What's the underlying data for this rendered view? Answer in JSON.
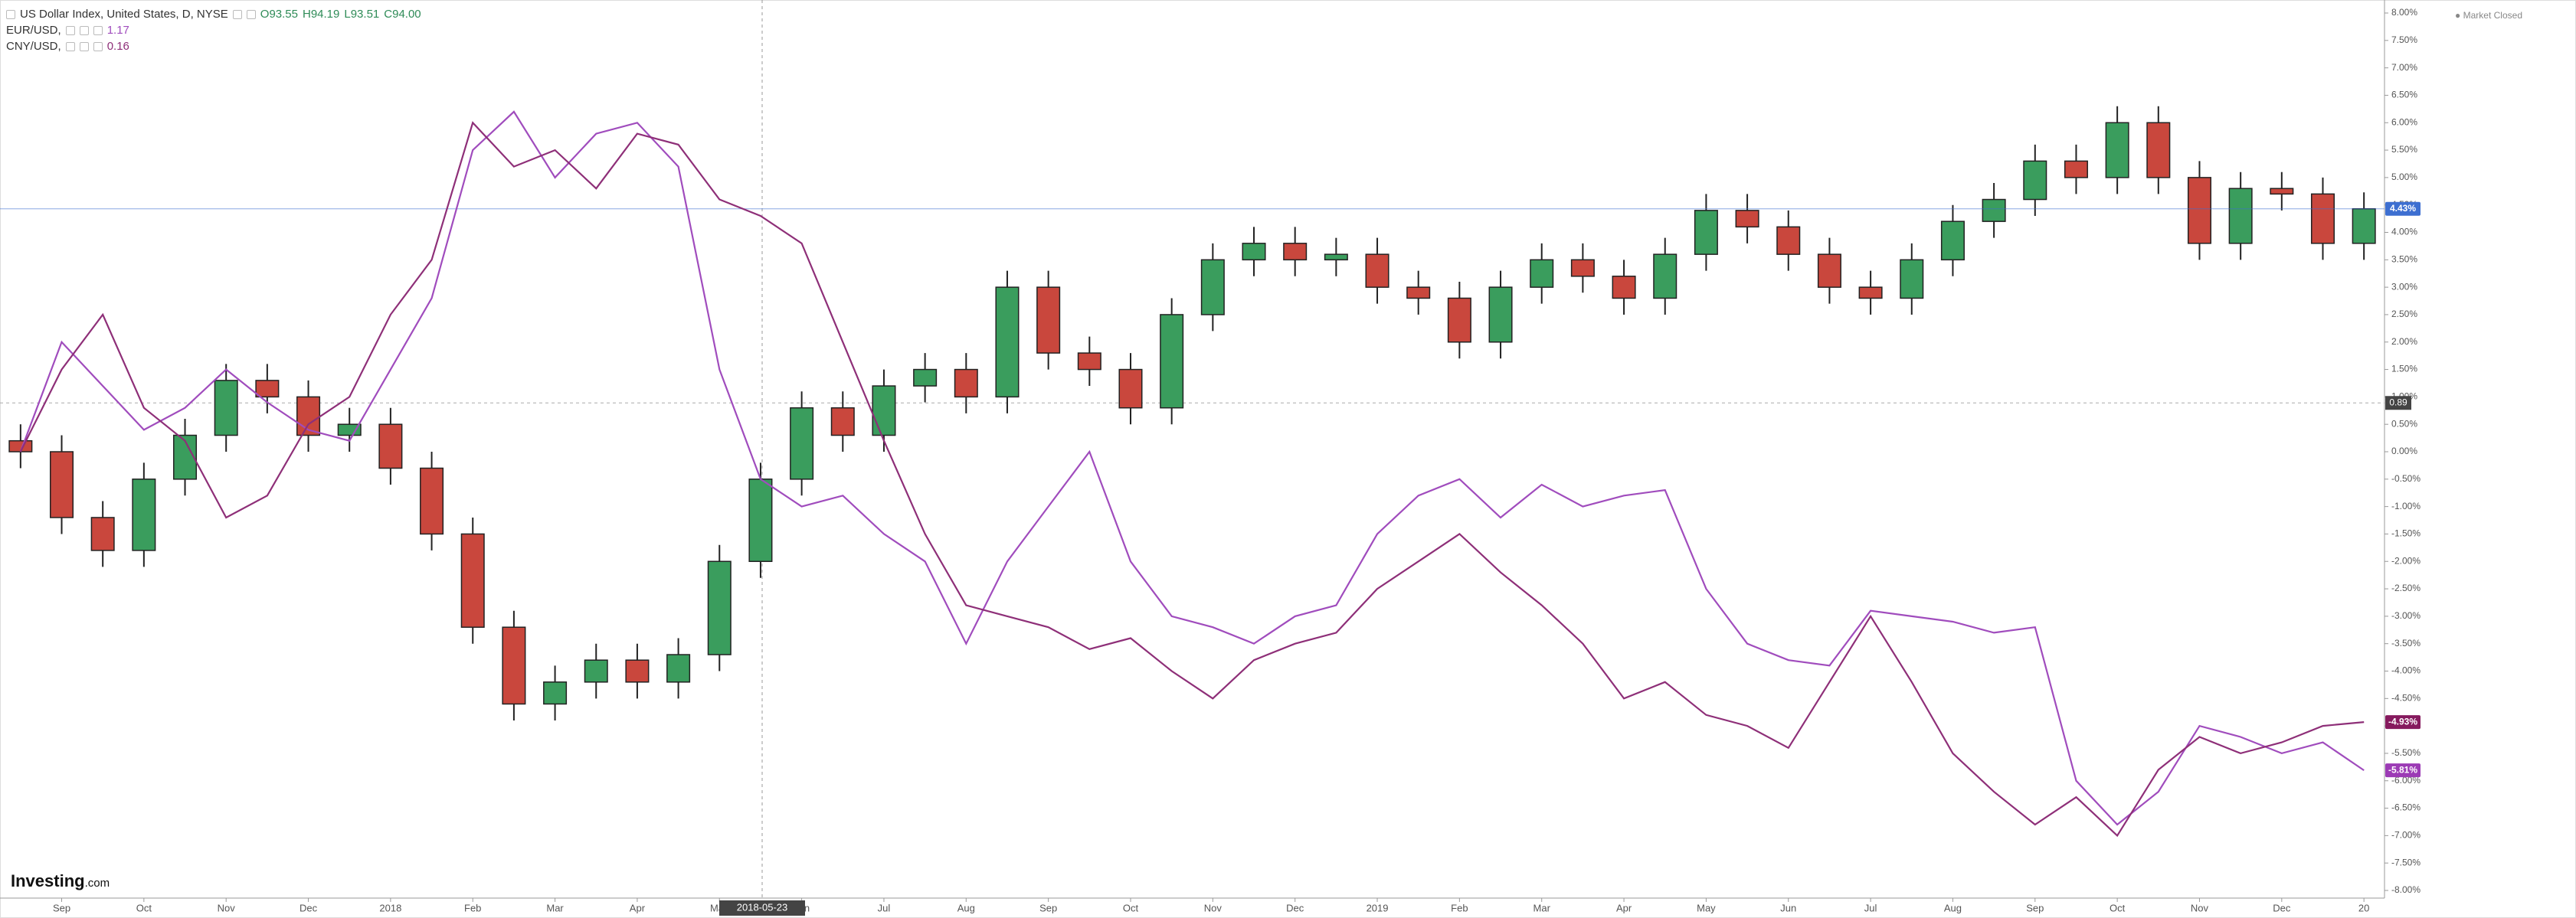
{
  "chart_data": {
    "type": "candlestick",
    "status": "Market Closed",
    "brand": [
      "Investing",
      ".com"
    ],
    "crosshair": {
      "date": "2018-05-23",
      "value": 0.89
    },
    "categories": [
      null,
      "Sep",
      null,
      "Oct",
      null,
      "Nov",
      null,
      "Dec",
      null,
      "2018",
      null,
      "Feb",
      null,
      "Mar",
      null,
      "Apr",
      null,
      "May",
      null,
      "Jun",
      null,
      "Jul",
      null,
      "Aug",
      null,
      "Sep",
      null,
      "Oct",
      null,
      "Nov",
      null,
      "Dec",
      null,
      "2019",
      null,
      "Feb",
      null,
      "Mar",
      null,
      "Apr",
      null,
      "May",
      null,
      "Jun",
      null,
      "Jul",
      null,
      "Aug",
      null,
      "Sep",
      null,
      "Oct",
      null,
      "Nov",
      null,
      "Dec",
      null,
      "20"
    ],
    "ylim": [
      -8,
      8
    ],
    "yticks": [
      {
        "value": 8,
        "label": "8.00%"
      },
      {
        "value": 7.5,
        "label": "7.50%"
      },
      {
        "value": 7,
        "label": "7.00%"
      },
      {
        "value": 6.5,
        "label": "6.50%"
      },
      {
        "value": 6,
        "label": "6.00%"
      },
      {
        "value": 5.5,
        "label": "5.50%"
      },
      {
        "value": 5,
        "label": "5.00%"
      },
      {
        "value": 4.5,
        "label": "4.50%"
      },
      {
        "value": 4,
        "label": "4.00%"
      },
      {
        "value": 3.5,
        "label": "3.50%"
      },
      {
        "value": 3,
        "label": "3.00%"
      },
      {
        "value": 2.5,
        "label": "2.50%"
      },
      {
        "value": 2,
        "label": "2.00%"
      },
      {
        "value": 1.5,
        "label": "1.50%"
      },
      {
        "value": 1,
        "label": "1.00%"
      },
      {
        "value": 0.5,
        "label": "0.50%"
      },
      {
        "value": 0,
        "label": "0.00%"
      },
      {
        "value": -0.5,
        "label": "-0.50%"
      },
      {
        "value": -1,
        "label": "-1.00%"
      },
      {
        "value": -1.5,
        "label": "-1.50%"
      },
      {
        "value": -2,
        "label": "-2.00%"
      },
      {
        "value": -2.5,
        "label": "-2.50%"
      },
      {
        "value": -3,
        "label": "-3.00%"
      },
      {
        "value": -3.5,
        "label": "-3.50%"
      },
      {
        "value": -4,
        "label": "-4.00%"
      },
      {
        "value": -4.5,
        "label": "-4.50%"
      },
      {
        "value": -5,
        "label": "-5.00%"
      },
      {
        "value": -5.5,
        "label": "-5.50%"
      },
      {
        "value": -6,
        "label": "-6.00%"
      },
      {
        "value": -6.5,
        "label": "-6.50%"
      },
      {
        "value": -7,
        "label": "-7.00%"
      },
      {
        "value": -7.5,
        "label": "-7.50%"
      },
      {
        "value": -8,
        "label": "-8.00%"
      }
    ],
    "grid": false,
    "series": [
      {
        "type": "candlestick",
        "name": "US Dollar Index, United States, D, NYSE",
        "readout": [
          "O93.55",
          "H94.19",
          "L93.51",
          "C94.00"
        ],
        "up_color": "#3a9d5d",
        "down_color": "#c9473d",
        "tag_color": "#3d6fd1",
        "last_label": "4.43%",
        "open": [
          0.2,
          0.0,
          -1.2,
          -1.8,
          -0.5,
          0.3,
          1.3,
          1.0,
          0.3,
          0.5,
          -0.3,
          -1.5,
          -3.2,
          -4.6,
          -4.2,
          -3.8,
          -4.2,
          -3.7,
          -2.0,
          -0.5,
          0.8,
          0.3,
          1.2,
          1.5,
          1.0,
          3.0,
          1.8,
          1.5,
          0.8,
          2.5,
          3.5,
          3.8,
          3.5,
          3.6,
          3.0,
          2.8,
          2.0,
          3.0,
          3.5,
          3.2,
          2.8,
          3.6,
          4.4,
          4.1,
          3.6,
          3.0,
          2.8,
          3.5,
          4.2,
          4.6,
          5.3,
          5.0,
          6.0,
          5.0,
          3.8,
          4.8,
          4.7,
          3.8
        ],
        "high": [
          0.5,
          0.3,
          -0.9,
          -0.2,
          0.6,
          1.6,
          1.6,
          1.3,
          0.8,
          0.8,
          0.0,
          -1.2,
          -2.9,
          -3.9,
          -3.5,
          -3.5,
          -3.4,
          -1.7,
          -0.2,
          1.1,
          1.1,
          1.5,
          1.8,
          1.8,
          3.3,
          3.3,
          2.1,
          1.8,
          2.8,
          3.8,
          4.1,
          4.1,
          3.9,
          3.9,
          3.3,
          3.1,
          3.3,
          3.8,
          3.8,
          3.5,
          3.9,
          4.7,
          4.7,
          4.4,
          3.9,
          3.3,
          3.8,
          4.5,
          4.9,
          5.6,
          5.6,
          6.3,
          6.3,
          5.3,
          5.1,
          5.1,
          5.0,
          4.73
        ],
        "low": [
          -0.3,
          -1.5,
          -2.1,
          -2.1,
          -0.8,
          0.0,
          0.7,
          0.0,
          0.0,
          -0.6,
          -1.8,
          -3.5,
          -4.9,
          -4.9,
          -4.5,
          -4.5,
          -4.5,
          -4.0,
          -2.3,
          -0.8,
          0.0,
          0.0,
          0.9,
          0.7,
          0.7,
          1.5,
          1.2,
          0.5,
          0.5,
          2.2,
          3.2,
          3.2,
          3.2,
          2.7,
          2.5,
          1.7,
          1.7,
          2.7,
          2.9,
          2.5,
          2.5,
          3.3,
          3.8,
          3.3,
          2.7,
          2.5,
          2.5,
          3.2,
          3.9,
          4.3,
          4.7,
          4.7,
          4.7,
          3.5,
          3.5,
          4.4,
          3.5,
          3.5
        ],
        "close": [
          0.0,
          -1.2,
          -1.8,
          -0.5,
          0.3,
          1.3,
          1.0,
          0.3,
          0.5,
          -0.3,
          -1.5,
          -3.2,
          -4.6,
          -4.2,
          -3.8,
          -4.2,
          -3.7,
          -2.0,
          -0.5,
          0.8,
          0.3,
          1.2,
          1.5,
          1.0,
          3.0,
          1.8,
          1.5,
          0.8,
          2.5,
          3.5,
          3.8,
          3.5,
          3.6,
          3.0,
          2.8,
          2.0,
          3.0,
          3.5,
          3.2,
          2.8,
          3.6,
          4.4,
          4.1,
          3.6,
          3.0,
          2.8,
          3.5,
          4.2,
          4.6,
          5.3,
          5.0,
          6.0,
          5.0,
          3.8,
          4.8,
          4.7,
          3.8,
          4.43
        ]
      },
      {
        "type": "line",
        "name": "EUR/USD,",
        "readout": "1.17",
        "color": "#a04cbd",
        "tag_color": "#9c3bb5",
        "last_label": "-5.81%",
        "values": [
          0,
          2.0,
          1.2,
          0.4,
          0.8,
          1.5,
          0.9,
          0.4,
          0.2,
          1.5,
          2.8,
          5.5,
          6.2,
          5.0,
          5.8,
          6.0,
          5.2,
          1.5,
          -0.5,
          -1.0,
          -0.8,
          -1.5,
          -2.0,
          -3.5,
          -2.0,
          -1.0,
          0.0,
          -2.0,
          -3.0,
          -3.2,
          -3.5,
          -3.0,
          -2.8,
          -1.5,
          -0.8,
          -0.5,
          -1.2,
          -0.6,
          -1.0,
          -0.8,
          -0.7,
          -2.5,
          -3.5,
          -3.8,
          -3.9,
          -2.9,
          -3.0,
          -3.1,
          -3.3,
          -3.2,
          -6.0,
          -6.8,
          -6.2,
          -5.0,
          -5.2,
          -5.5,
          -5.3,
          -5.81
        ]
      },
      {
        "type": "line",
        "name": "CNY/USD,",
        "readout": "0.16",
        "color": "#8e2f78",
        "tag_color": "#861a5e",
        "last_label": "-4.93%",
        "values": [
          0,
          1.5,
          2.5,
          0.8,
          0.2,
          -1.2,
          -0.8,
          0.5,
          1.0,
          2.5,
          3.5,
          6.0,
          5.2,
          5.5,
          4.8,
          5.8,
          5.6,
          4.6,
          4.3,
          3.8,
          2.0,
          0.2,
          -1.5,
          -2.8,
          -3.0,
          -3.2,
          -3.6,
          -3.4,
          -4.0,
          -4.5,
          -3.8,
          -3.5,
          -3.3,
          -2.5,
          -2.0,
          -1.5,
          -2.2,
          -2.8,
          -3.5,
          -4.5,
          -4.2,
          -4.8,
          -5.0,
          -5.4,
          -4.2,
          -3.0,
          -4.2,
          -5.5,
          -6.2,
          -6.8,
          -6.3,
          -7.0,
          -5.8,
          -5.2,
          -5.5,
          -5.3,
          -5.0,
          -4.93
        ]
      }
    ]
  }
}
